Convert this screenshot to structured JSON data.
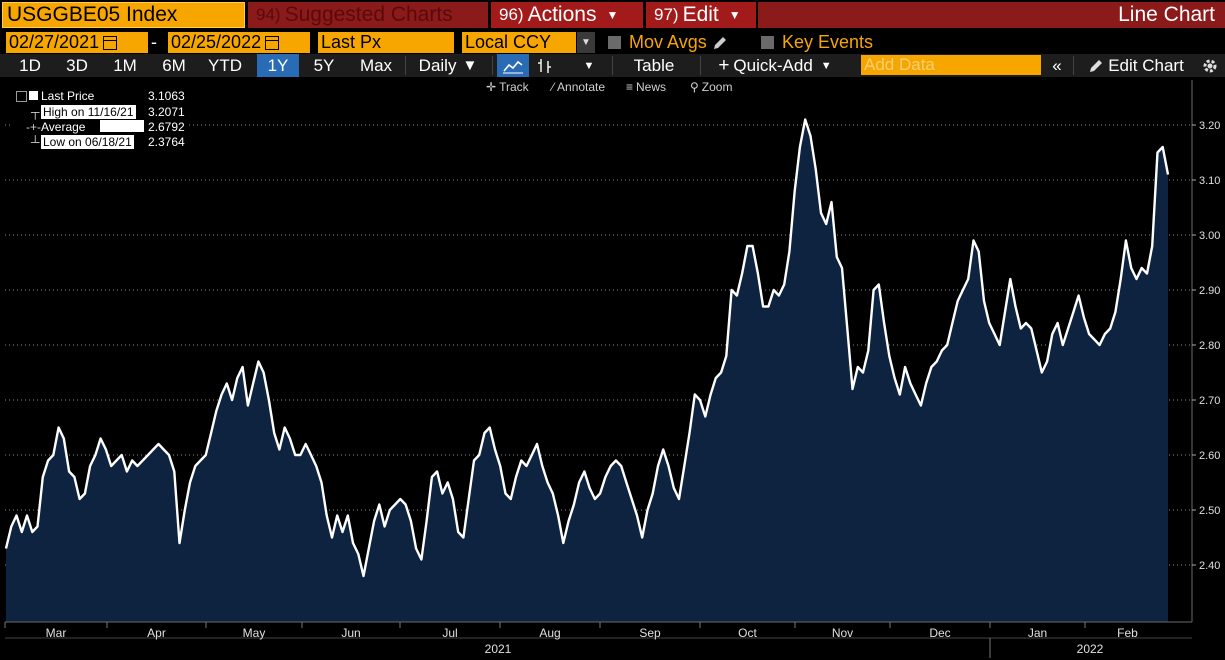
{
  "header": {
    "ticker": "USGGBE05 Index",
    "suggested_num": "94)",
    "suggested_label": "Suggested Charts",
    "actions_num": "96)",
    "actions_label": "Actions",
    "edit_num": "97)",
    "edit_label": "Edit",
    "view_title": "Line Chart"
  },
  "toolbar2": {
    "start_date": "02/27/2021",
    "date_separator": "-",
    "end_date": "02/25/2022",
    "field": "Last Px",
    "currency": "Local CCY",
    "mov_avgs": "Mov Avgs",
    "key_events": "Key Events"
  },
  "toolbar3": {
    "ranges": [
      "1D",
      "3D",
      "1M",
      "6M",
      "YTD",
      "1Y",
      "5Y",
      "Max"
    ],
    "selected_range": "1Y",
    "frequency": "Daily",
    "table": "Table",
    "quick_add": "Quick-Add",
    "add_data_placeholder": "Add Data",
    "edit_chart": "Edit Chart"
  },
  "toolbar4": {
    "track": "Track",
    "annotate": "Annotate",
    "news": "News",
    "zoom": "Zoom"
  },
  "legend": {
    "last_label": "Last Price",
    "last_value": "3.1063",
    "high_label": "High on 11/16/21",
    "high_value": "3.2071",
    "avg_label": "Average",
    "avg_value": "2.6792",
    "low_label": "Low on 06/18/21",
    "low_value": "2.3764"
  },
  "colors": {
    "orange": "#f7a600",
    "red_header": "#a31a1a",
    "area_fill": "#0d2340",
    "line": "#ffffff"
  },
  "chart_data": {
    "type": "area",
    "ylim": [
      2.3,
      3.28
    ],
    "yticks": [
      "2.40",
      "2.50",
      "2.60",
      "2.70",
      "2.80",
      "2.90",
      "3.00",
      "3.10",
      "3.20"
    ],
    "months": [
      "Mar",
      "Apr",
      "May",
      "Jun",
      "Jul",
      "Aug",
      "Sep",
      "Oct",
      "Nov",
      "Dec",
      "Jan",
      "Feb"
    ],
    "years": [
      "2021",
      "2022"
    ],
    "series": [
      {
        "values": [
          2.43,
          2.47,
          2.49,
          2.46,
          2.49,
          2.46,
          2.47,
          2.56,
          2.59,
          2.6,
          2.65,
          2.63,
          2.57,
          2.56,
          2.52,
          2.53,
          2.58,
          2.6,
          2.63,
          2.61,
          2.58,
          2.59,
          2.6,
          2.57,
          2.59,
          2.58,
          2.59,
          2.6,
          2.61,
          2.62,
          2.61,
          2.6,
          2.57,
          2.44,
          2.5,
          2.55,
          2.58,
          2.59,
          2.6,
          2.64,
          2.68,
          2.71,
          2.73,
          2.7,
          2.74,
          2.76,
          2.69,
          2.73,
          2.77,
          2.75,
          2.7,
          2.64,
          2.61,
          2.65,
          2.63,
          2.6,
          2.6,
          2.62,
          2.6,
          2.58,
          2.55,
          2.49,
          2.45,
          2.49,
          2.46,
          2.49,
          2.44,
          2.42,
          2.38,
          2.43,
          2.48,
          2.51,
          2.47,
          2.5,
          2.51,
          2.52,
          2.51,
          2.48,
          2.43,
          2.41,
          2.48,
          2.56,
          2.57,
          2.53,
          2.55,
          2.52,
          2.46,
          2.45,
          2.52,
          2.59,
          2.6,
          2.64,
          2.65,
          2.61,
          2.58,
          2.53,
          2.52,
          2.56,
          2.59,
          2.58,
          2.6,
          2.62,
          2.58,
          2.55,
          2.53,
          2.49,
          2.44,
          2.48,
          2.51,
          2.55,
          2.57,
          2.54,
          2.52,
          2.53,
          2.56,
          2.58,
          2.59,
          2.58,
          2.55,
          2.52,
          2.49,
          2.45,
          2.5,
          2.53,
          2.58,
          2.61,
          2.58,
          2.54,
          2.52,
          2.58,
          2.64,
          2.71,
          2.7,
          2.67,
          2.71,
          2.74,
          2.75,
          2.78,
          2.9,
          2.89,
          2.93,
          2.98,
          2.98,
          2.93,
          2.87,
          2.87,
          2.9,
          2.89,
          2.91,
          2.97,
          3.08,
          3.16,
          3.21,
          3.18,
          3.12,
          3.04,
          3.02,
          3.06,
          2.96,
          2.94,
          2.83,
          2.72,
          2.76,
          2.75,
          2.79,
          2.9,
          2.91,
          2.84,
          2.78,
          2.74,
          2.71,
          2.76,
          2.73,
          2.71,
          2.69,
          2.73,
          2.76,
          2.77,
          2.79,
          2.8,
          2.84,
          2.88,
          2.9,
          2.92,
          2.99,
          2.97,
          2.88,
          2.84,
          2.82,
          2.8,
          2.86,
          2.92,
          2.87,
          2.83,
          2.84,
          2.83,
          2.79,
          2.75,
          2.77,
          2.82,
          2.84,
          2.8,
          2.83,
          2.86,
          2.89,
          2.85,
          2.82,
          2.81,
          2.8,
          2.82,
          2.83,
          2.86,
          2.92,
          2.99,
          2.94,
          2.92,
          2.94,
          2.93,
          2.98,
          3.15,
          3.16,
          3.11
        ]
      }
    ]
  }
}
